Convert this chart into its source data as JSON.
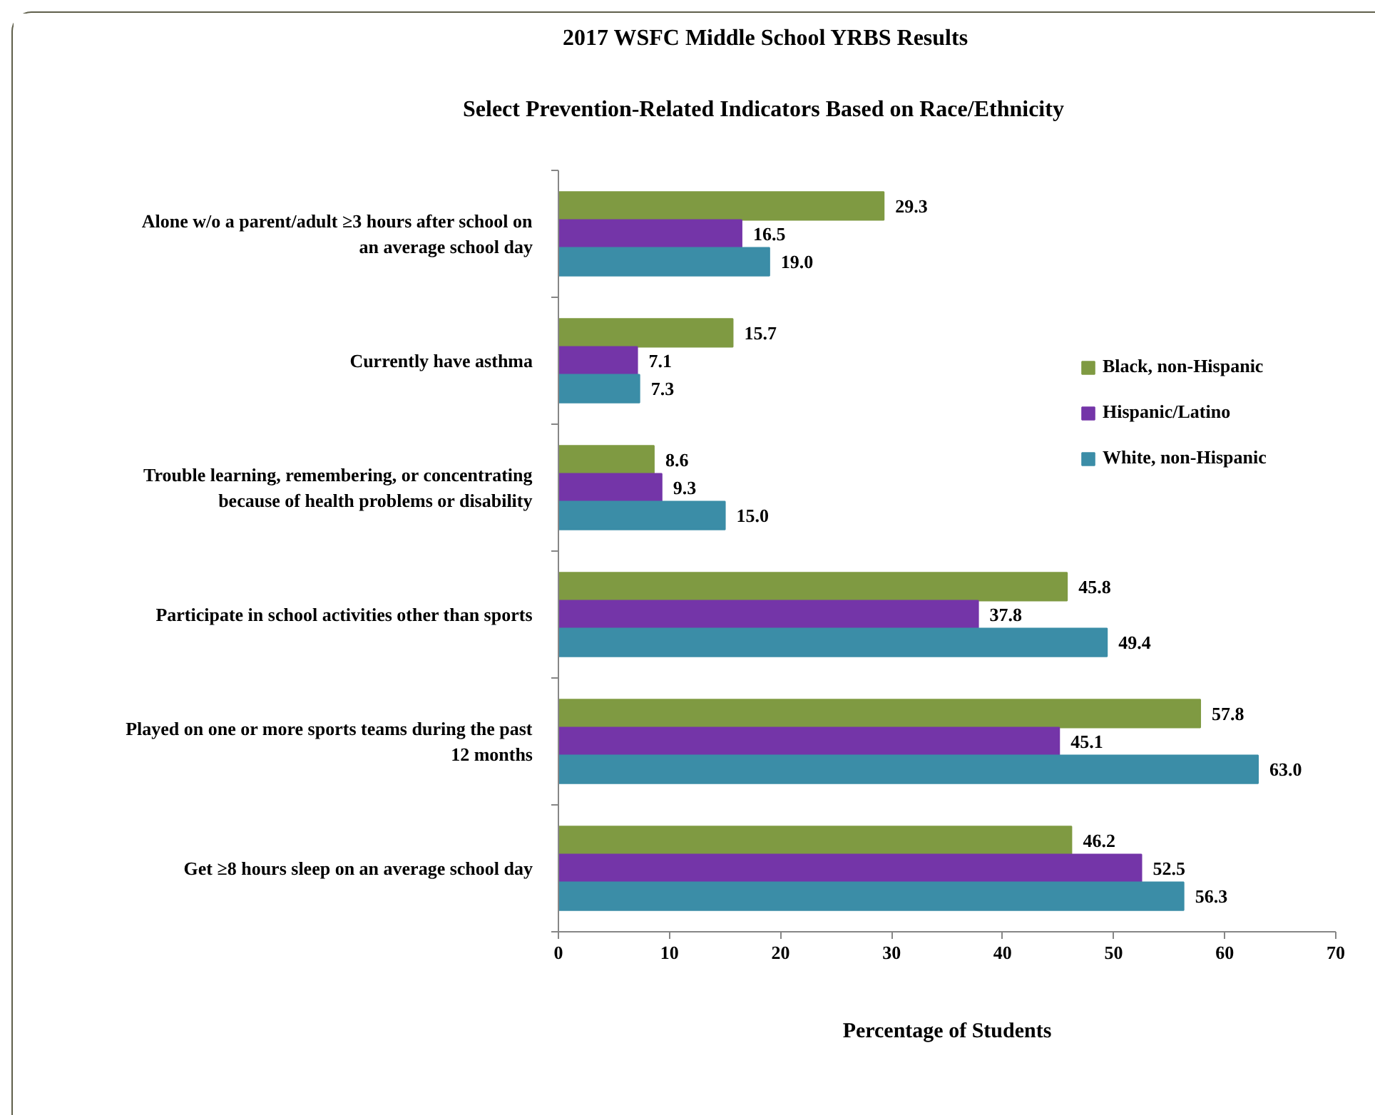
{
  "chart_data": {
    "type": "bar",
    "orientation": "horizontal",
    "title": "2017 WSFC Middle School YRBS Results",
    "subtitle": "Select Prevention-Related Indicators Based on Race/Ethnicity",
    "xlabel": "Percentage of Students",
    "categories": [
      "Alone w/o a parent/adult ≥3 hours after school on an average school day",
      "Currently have asthma",
      "Trouble learning, remembering, or concentrating because of health problems or disability",
      "Participate in school activities other than sports",
      "Played on one or more sports teams during the past 12 months",
      "Get ≥8 hours sleep on an average school day"
    ],
    "series": [
      {
        "name": "Black, non-Hispanic",
        "color": "#7f9a42",
        "values": [
          29.3,
          15.7,
          8.6,
          45.8,
          57.8,
          46.2
        ],
        "value_labels": [
          "29.3",
          "15.7",
          "8.6",
          "45.8",
          "57.8",
          "46.2"
        ]
      },
      {
        "name": "Hispanic/Latino",
        "color": "#7435a8",
        "values": [
          16.5,
          7.1,
          9.3,
          37.8,
          45.1,
          52.5
        ],
        "value_labels": [
          "16.5",
          "7.1",
          "9.3",
          "37.8",
          "45.1",
          "52.5"
        ]
      },
      {
        "name": "White, non-Hispanic",
        "color": "#3b8da7",
        "values": [
          19.0,
          7.3,
          15.0,
          49.4,
          63.0,
          56.3
        ],
        "value_labels": [
          "19.0",
          "7.3",
          "15.0",
          "49.4",
          "63.0",
          "56.3"
        ]
      }
    ],
    "xlim": [
      0,
      70
    ],
    "xticks": [
      0,
      10,
      20,
      30,
      40,
      50,
      60,
      70
    ],
    "legend": "right",
    "grid": false
  }
}
